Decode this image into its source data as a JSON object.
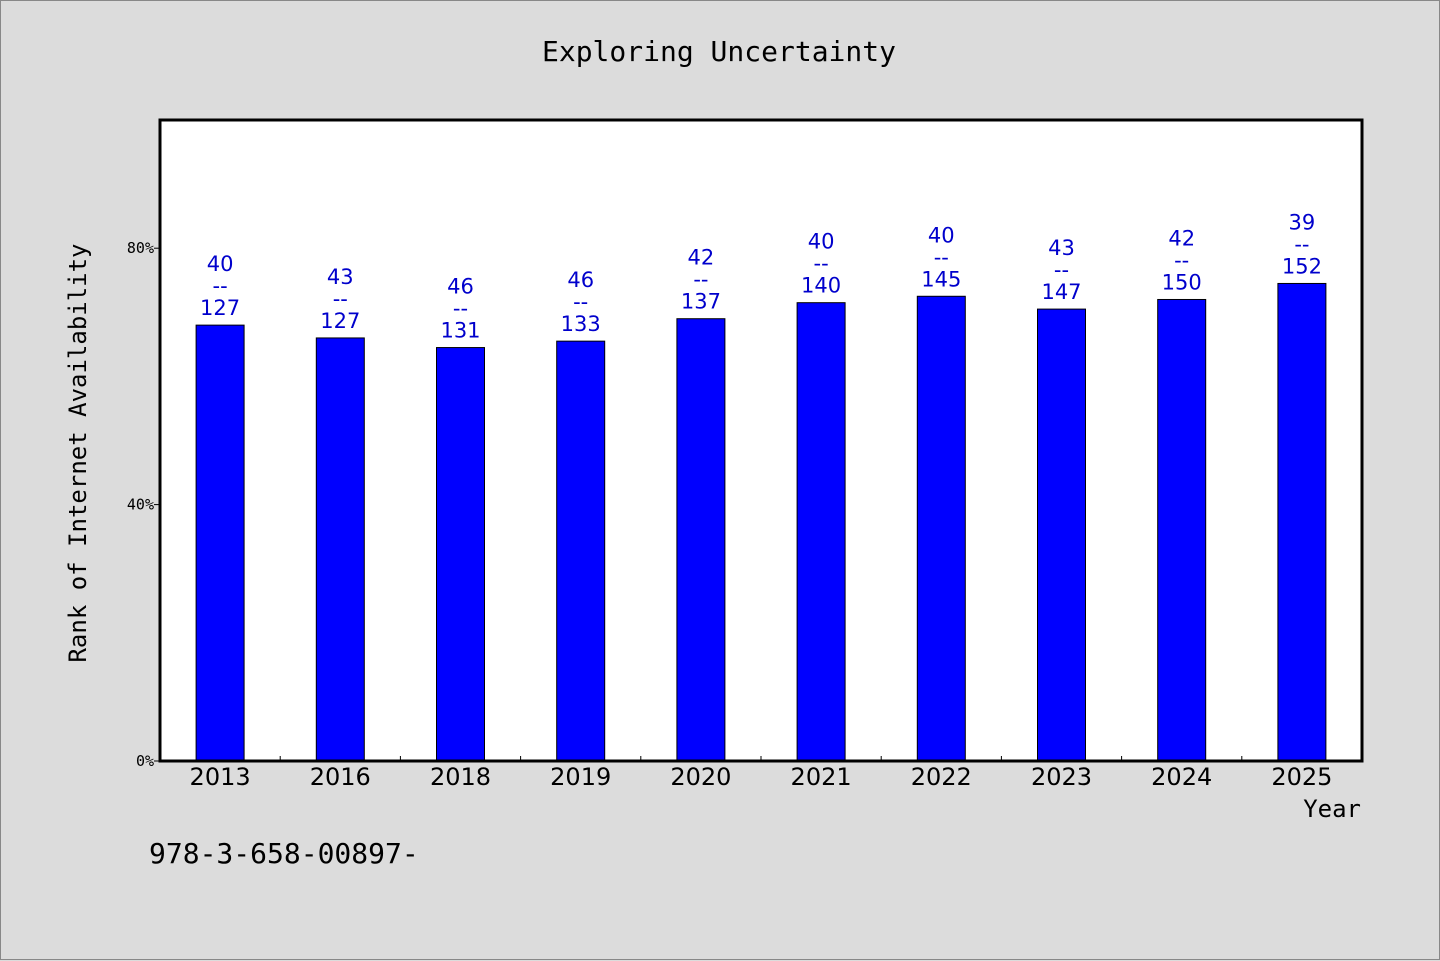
{
  "chart_data": {
    "type": "bar",
    "title": "Exploring Uncertainty",
    "xlabel": "Year",
    "ylabel": "Rank of Internet Availability",
    "categories": [
      "2013",
      "2016",
      "2018",
      "2019",
      "2020",
      "2021",
      "2022",
      "2023",
      "2024",
      "2025"
    ],
    "values": [
      68,
      66,
      64.5,
      65.5,
      69,
      71.5,
      72.5,
      70.5,
      72,
      74.5
    ],
    "value_unit": "%",
    "data_labels": [
      [
        "40",
        "--",
        "127"
      ],
      [
        "43",
        "--",
        "127"
      ],
      [
        "46",
        "--",
        "131"
      ],
      [
        "46",
        "--",
        "133"
      ],
      [
        "42",
        "--",
        "137"
      ],
      [
        "40",
        "--",
        "140"
      ],
      [
        "40",
        "--",
        "145"
      ],
      [
        "43",
        "--",
        "147"
      ],
      [
        "42",
        "--",
        "150"
      ],
      [
        "39",
        "--",
        "152"
      ]
    ],
    "yticks": [
      0,
      40,
      80
    ],
    "ytick_labels": [
      "0%",
      "40%",
      "80%"
    ],
    "ylim": [
      0,
      100
    ],
    "grid": false,
    "legend": "none",
    "bar_color": "#0000ff",
    "label_color": "#0000cc",
    "background_color": "#dcdcdc",
    "plot_background_color": "#ffffff"
  },
  "footnote": "978-3-658-00897-"
}
